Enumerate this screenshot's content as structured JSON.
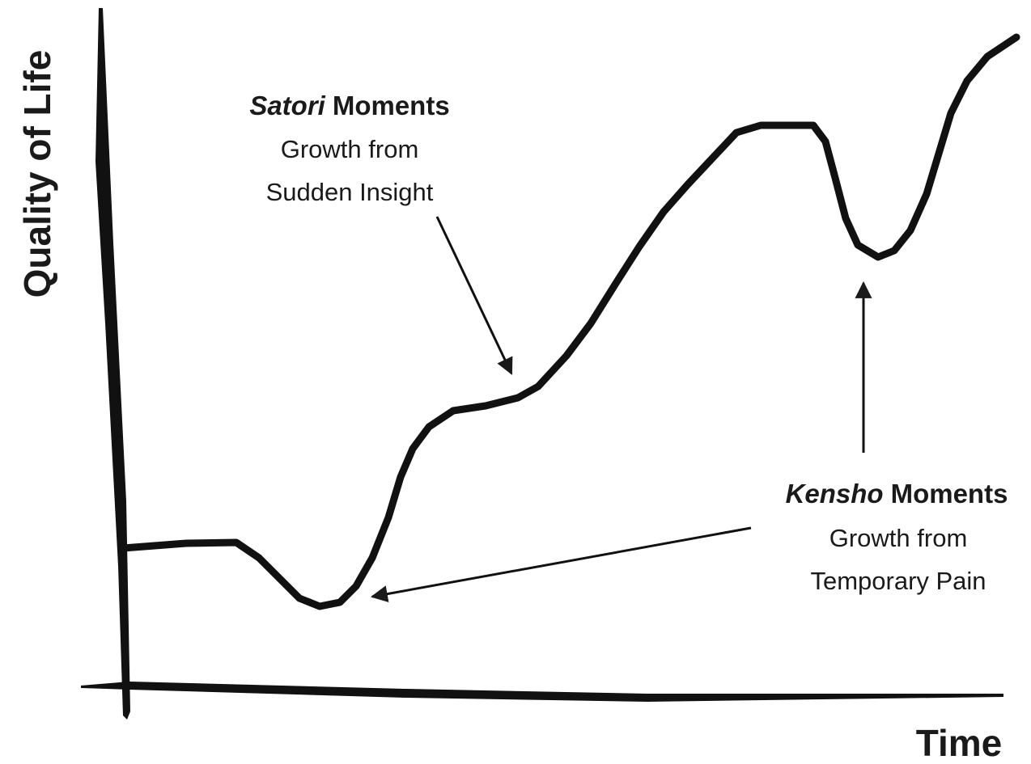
{
  "axes": {
    "y_label": "Quality of Life",
    "x_label": "Time"
  },
  "annotations": [
    {
      "title_italic": "Satori",
      "title_rest": "Moments",
      "lines": [
        "Growth from",
        "Sudden Insight"
      ]
    },
    {
      "title_italic": "Kensho",
      "title_rest": "Moments",
      "lines": [
        "Growth from",
        "Temporary Pain"
      ]
    }
  ]
}
